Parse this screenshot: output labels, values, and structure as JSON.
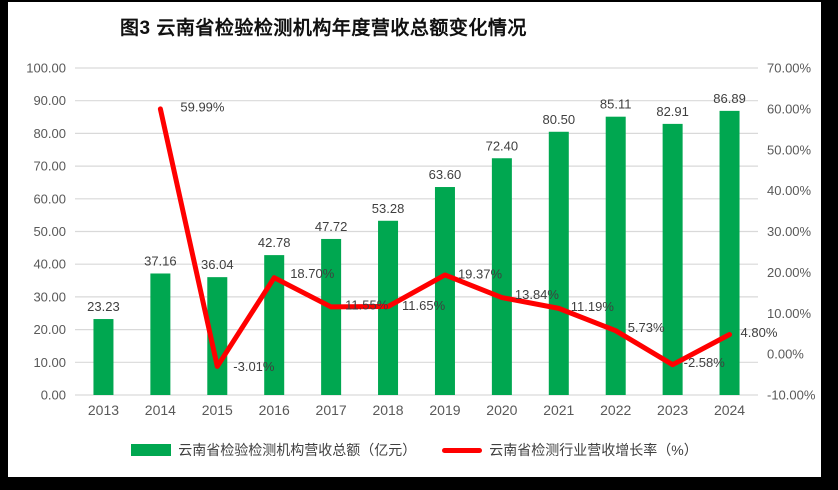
{
  "title": "图3  云南省检验检测机构年度营收总额变化情况",
  "colors": {
    "frame_bg": "#000000",
    "chart_bg": "#FFFFFF",
    "bar": "#00A750",
    "line": "#FF0000",
    "grid": "#D9D9D9",
    "axis_text": "#595959",
    "data_label": "#3F3F3F",
    "title_text": "#111111"
  },
  "chart_data": {
    "type": "bar",
    "subtype": "combo-bar-line",
    "title": "图3  云南省检验检测机构年度营收总额变化情况",
    "categories": [
      "2013",
      "2014",
      "2015",
      "2016",
      "2017",
      "2018",
      "2019",
      "2020",
      "2021",
      "2022",
      "2023",
      "2024"
    ],
    "series": [
      {
        "name": "云南省检验检测机构营收总额（亿元）",
        "type": "bar",
        "axis": "left",
        "color": "#00A750",
        "values": [
          23.23,
          37.16,
          36.04,
          42.78,
          47.72,
          53.28,
          63.6,
          72.4,
          80.5,
          85.11,
          82.91,
          86.89
        ],
        "labels": [
          "23.23",
          "37.16",
          "36.04",
          "42.78",
          "47.72",
          "53.28",
          "63.60",
          "72.40",
          "80.50",
          "85.11",
          "82.91",
          "86.89"
        ]
      },
      {
        "name": "云南省检测行业营收增长率（%）",
        "type": "line",
        "axis": "right",
        "color": "#FF0000",
        "values": [
          null,
          59.99,
          -3.01,
          18.7,
          11.55,
          11.65,
          19.37,
          13.84,
          11.19,
          5.73,
          -2.58,
          4.8
        ],
        "labels": [
          null,
          "59.99%",
          "-3.01%",
          "18.70%",
          "11.55%",
          "11.65%",
          "19.37%",
          "13.84%",
          "11.19%",
          "5.73%",
          "-2.58%",
          "4.80%"
        ],
        "label_offsets": [
          null,
          [
            20,
            -2
          ],
          [
            16,
            0
          ],
          [
            16,
            -4
          ],
          [
            14,
            -2
          ],
          [
            14,
            -1
          ],
          [
            13,
            -1
          ],
          [
            13,
            -3
          ],
          [
            12,
            -2
          ],
          [
            12,
            -3
          ],
          [
            11,
            -2
          ],
          [
            11,
            -2
          ]
        ]
      }
    ],
    "left_axis": {
      "min": 0,
      "max": 100,
      "step": 10,
      "tick_labels": [
        "0.00",
        "10.00",
        "20.00",
        "30.00",
        "40.00",
        "50.00",
        "60.00",
        "70.00",
        "80.00",
        "90.00",
        "100.00"
      ]
    },
    "right_axis": {
      "min": -10,
      "max": 70,
      "step": 10,
      "tick_labels": [
        "-10.00%",
        "0.00%",
        "10.00%",
        "20.00%",
        "30.00%",
        "40.00%",
        "50.00%",
        "60.00%",
        "70.00%"
      ]
    },
    "grid": true,
    "legend_position": "bottom"
  }
}
